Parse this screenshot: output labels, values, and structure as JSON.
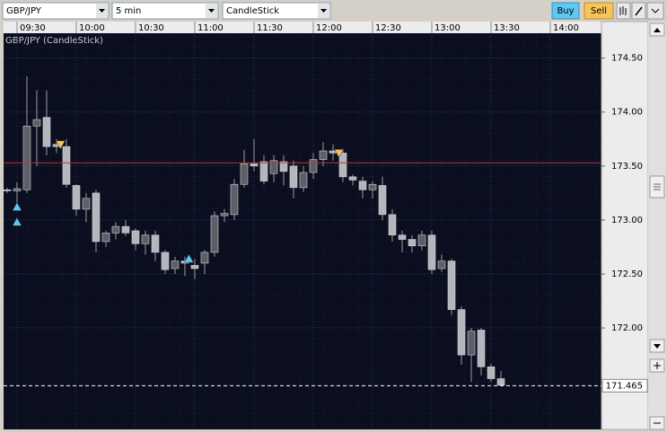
{
  "toolbar": {
    "symbol": "GBP/JPY",
    "interval": "5 min",
    "chart_style": "CandleStick",
    "buy": "Buy",
    "sell": "Sell"
  },
  "chart_data": {
    "type": "candlestick",
    "title": "GBP/JPY (CandleStick)",
    "x": [
      565,
      570,
      575,
      580,
      585,
      590,
      595,
      600,
      605,
      610,
      615,
      620,
      625,
      630,
      635,
      640,
      645,
      650,
      655,
      660,
      665,
      670,
      675,
      680,
      685,
      690,
      695,
      700,
      705,
      710,
      715,
      720,
      725,
      730,
      735,
      740,
      745,
      750,
      755,
      760,
      765,
      770,
      775,
      780,
      785,
      790,
      795,
      800,
      805,
      810,
      815
    ],
    "open": [
      173.28,
      173.27,
      173.28,
      173.87,
      173.95,
      173.7,
      173.68,
      173.32,
      173.1,
      173.25,
      172.8,
      172.88,
      172.94,
      172.9,
      172.78,
      172.86,
      172.7,
      172.55,
      172.62,
      172.58,
      172.6,
      172.7,
      173.04,
      173.05,
      173.33,
      173.52,
      173.54,
      173.43,
      173.54,
      173.5,
      173.3,
      173.44,
      173.56,
      173.64,
      173.62,
      173.4,
      173.36,
      173.28,
      173.32,
      173.05,
      172.86,
      172.82,
      172.76,
      172.86,
      172.55,
      172.62,
      172.17,
      171.75,
      171.98,
      171.64,
      171.53
    ],
    "high": [
      173.3,
      173.35,
      174.33,
      174.2,
      174.2,
      173.75,
      173.75,
      173.33,
      173.25,
      173.28,
      172.9,
      172.98,
      173.0,
      172.92,
      172.9,
      172.9,
      172.72,
      172.66,
      172.66,
      172.64,
      172.72,
      173.08,
      173.1,
      173.38,
      173.65,
      173.75,
      173.6,
      173.6,
      173.6,
      173.55,
      173.5,
      173.62,
      173.72,
      173.7,
      173.66,
      173.42,
      173.4,
      173.36,
      173.4,
      173.1,
      172.9,
      172.86,
      172.9,
      172.9,
      172.68,
      172.64,
      172.2,
      172.0,
      172.0,
      171.67,
      171.6
    ],
    "low": [
      173.25,
      173.1,
      173.25,
      173.5,
      173.6,
      173.62,
      173.3,
      173.04,
      172.98,
      172.7,
      172.75,
      172.82,
      172.85,
      172.72,
      172.68,
      172.62,
      172.5,
      172.5,
      172.48,
      172.45,
      172.5,
      172.66,
      172.98,
      173.0,
      173.3,
      173.45,
      173.33,
      173.35,
      173.32,
      173.2,
      173.26,
      173.38,
      173.5,
      173.55,
      173.35,
      173.32,
      173.2,
      173.2,
      173.0,
      172.8,
      172.7,
      172.7,
      172.72,
      172.5,
      172.52,
      172.12,
      171.66,
      171.5,
      171.56,
      171.5,
      171.46
    ],
    "close": [
      173.27,
      173.29,
      173.87,
      173.93,
      173.68,
      173.68,
      173.33,
      173.1,
      173.2,
      172.8,
      172.88,
      172.94,
      172.88,
      172.78,
      172.86,
      172.7,
      172.54,
      172.62,
      172.6,
      172.55,
      172.7,
      173.04,
      173.06,
      173.33,
      173.52,
      173.5,
      173.36,
      173.55,
      173.45,
      173.3,
      173.44,
      173.56,
      173.64,
      173.62,
      173.4,
      173.37,
      173.28,
      173.33,
      173.05,
      172.86,
      172.82,
      172.76,
      172.86,
      172.54,
      172.62,
      172.17,
      171.75,
      171.97,
      171.64,
      171.53,
      171.47
    ],
    "up_color": "#5c5f66",
    "down_color": "#b4b6bb",
    "signals": [
      {
        "time": 570,
        "price": 173.12,
        "direction": "up"
      },
      {
        "time": 570,
        "price": 172.98,
        "direction": "up"
      },
      {
        "time": 592,
        "price": 173.7,
        "direction": "down"
      },
      {
        "time": 657,
        "price": 172.64,
        "direction": "up"
      },
      {
        "time": 733,
        "price": 173.62,
        "direction": "down"
      }
    ],
    "reference_line": 173.53,
    "last_price": {
      "value": 171.465,
      "label": "171.465"
    },
    "xlim": [
      563.2,
      865.9
    ],
    "xticks": [
      {
        "value": 570,
        "label": "09:30"
      },
      {
        "value": 600,
        "label": "10:00"
      },
      {
        "value": 630,
        "label": "10:30"
      },
      {
        "value": 660,
        "label": "11:00"
      },
      {
        "value": 690,
        "label": "11:30"
      },
      {
        "value": 720,
        "label": "12:00"
      },
      {
        "value": 750,
        "label": "12:30"
      },
      {
        "value": 780,
        "label": "13:00"
      },
      {
        "value": 810,
        "label": "13:30"
      },
      {
        "value": 840,
        "label": "14:00"
      }
    ],
    "ylim": [
      171.06,
      174.73
    ],
    "yticks": [
      {
        "value": 172.0,
        "label": "172.00"
      },
      {
        "value": 172.5,
        "label": "172.50"
      },
      {
        "value": 173.0,
        "label": "173.00"
      },
      {
        "value": 173.5,
        "label": "173.50"
      },
      {
        "value": 174.0,
        "label": "174.00"
      },
      {
        "value": 174.5,
        "label": "174.50"
      }
    ],
    "grid": true
  }
}
